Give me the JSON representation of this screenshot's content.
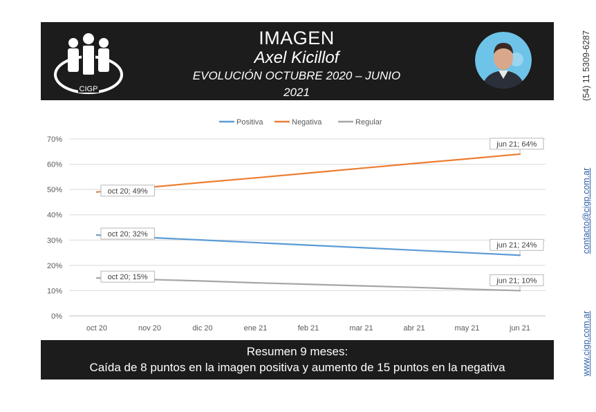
{
  "header": {
    "logo_text": "CIGP",
    "title": "IMAGEN",
    "subtitle": "Axel Kicillof",
    "period": "EVOLUCIÓN OCTUBRE 2020 – JUNIO 2021"
  },
  "side": {
    "phone": "(54) 11 5309-6287",
    "email": "contacto@cigp.com.ar",
    "web": "www.cigp.com.ar"
  },
  "footer": {
    "line1": "Resumen 9 meses:",
    "line2": "Caída de 8 puntos en la imagen positiva y aumento de 15 puntos en la negativa"
  },
  "chart_data": {
    "type": "line",
    "categories": [
      "oct 20",
      "nov 20",
      "dic 20",
      "ene 21",
      "feb 21",
      "mar 21",
      "abr 21",
      "may 21",
      "jun 21"
    ],
    "y_ticks": [
      "0%",
      "10%",
      "20%",
      "30%",
      "40%",
      "50%",
      "60%",
      "70%"
    ],
    "ylim": [
      0,
      70
    ],
    "grid": true,
    "legend_position": "top",
    "series": [
      {
        "name": "Positiva",
        "color": "#5b9bd5",
        "values": [
          32,
          31,
          30,
          29,
          28,
          27,
          26,
          25,
          24
        ]
      },
      {
        "name": "Negativa",
        "color": "#ed7d31",
        "values": [
          49,
          50.9,
          52.8,
          54.6,
          56.5,
          58.4,
          60.3,
          62.1,
          64
        ]
      },
      {
        "name": "Regular",
        "color": "#a5a5a5",
        "values": [
          15,
          14.4,
          13.8,
          13.1,
          12.5,
          11.9,
          11.3,
          10.6,
          10
        ]
      }
    ],
    "annotations": [
      {
        "series": 0,
        "index": 0,
        "text": "oct 20; 32%"
      },
      {
        "series": 0,
        "index": 8,
        "text": "jun 21; 24%"
      },
      {
        "series": 1,
        "index": 0,
        "text": "oct 20; 49%"
      },
      {
        "series": 1,
        "index": 8,
        "text": "jun 21; 64%"
      },
      {
        "series": 2,
        "index": 0,
        "text": "oct 20; 15%"
      },
      {
        "series": 2,
        "index": 8,
        "text": "jun 21; 10%"
      }
    ]
  }
}
